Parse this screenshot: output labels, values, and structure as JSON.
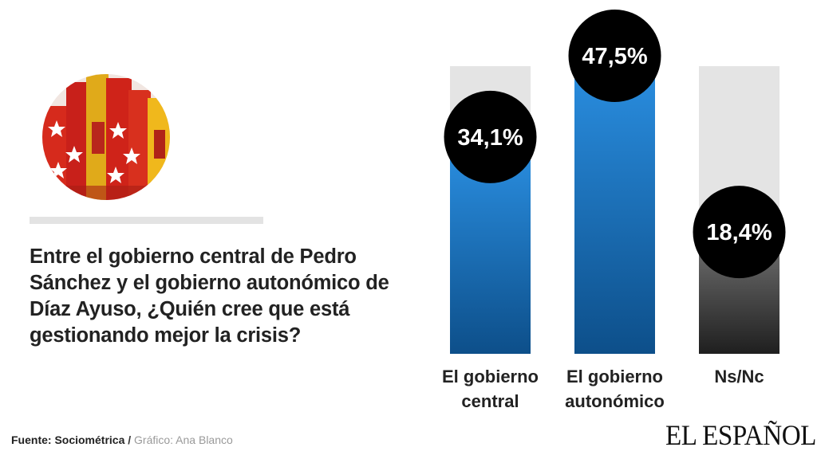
{
  "question": "Entre el gobierno central de Pedro Sánchez y el gobierno autonómico de Díaz Ayuso, ¿Quién cree que está gestionando mejor la crisis?",
  "footer": {
    "source_label": "Fuente: Sociométrica",
    "separator": "/",
    "credit": "Gráfico: Ana Blanco"
  },
  "brand": "EL ESPAÑOL",
  "colors": {
    "blue_top": "#2a8ee0",
    "blue_bottom": "#0d4f8a",
    "gray_top": "#6e6e6e",
    "gray_bottom": "#1f1f1f",
    "track": "#e4e4e4",
    "bubble": "#000000"
  },
  "chart_data": {
    "type": "bar",
    "categories": [
      [
        "El gobierno",
        "central"
      ],
      [
        "El gobierno",
        "autonómico"
      ],
      [
        "Ns/Nc"
      ]
    ],
    "values": [
      34.1,
      47.5,
      18.4
    ],
    "value_labels": [
      "34,1%",
      "47,5%",
      "18,4%"
    ],
    "bar_colors": [
      "blue",
      "blue",
      "gray"
    ],
    "ylim": [
      0,
      47.5
    ],
    "title": "",
    "xlabel": "",
    "ylabel": "",
    "grid": false,
    "legend": "none"
  },
  "photo": {
    "icon": "madrid-and-spain-flags-photo"
  }
}
